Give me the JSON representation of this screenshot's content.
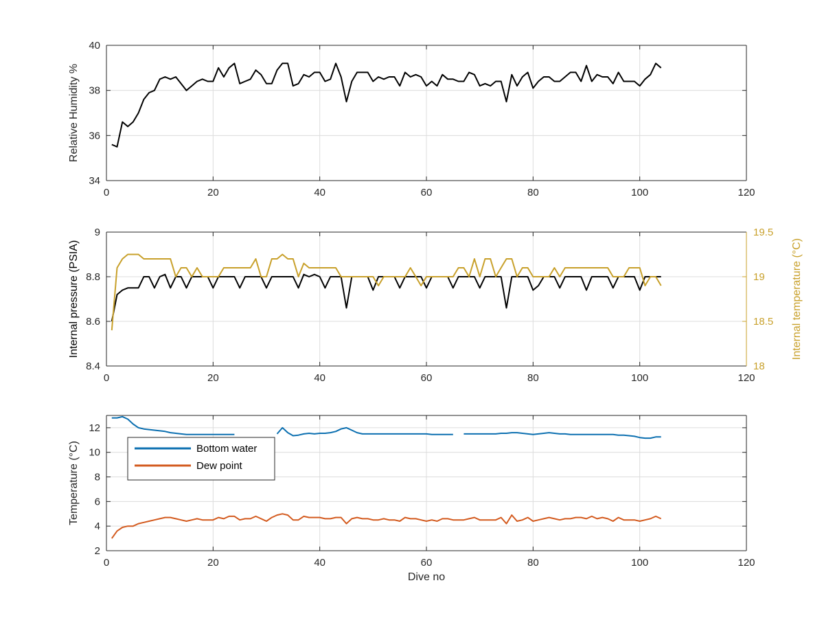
{
  "chart_data": [
    {
      "type": "line",
      "xlabel": "",
      "ylabel": "Relative Humidity %",
      "xlim": [
        0,
        120
      ],
      "ylim": [
        34,
        40
      ],
      "xticks": [
        "0",
        "20",
        "40",
        "60",
        "80",
        "100",
        "120"
      ],
      "yticks": [
        "34",
        "36",
        "38",
        "40"
      ],
      "grid": true,
      "series": [
        {
          "color": "#000000",
          "axis": "left",
          "x": [
            1,
            2,
            3,
            4,
            5,
            6,
            7,
            8,
            9,
            10,
            11,
            12,
            13,
            14,
            15,
            16,
            17,
            18,
            19,
            20,
            21,
            22,
            23,
            24,
            25,
            26,
            27,
            28,
            29,
            30,
            31,
            32,
            33,
            34,
            35,
            36,
            37,
            38,
            39,
            40,
            41,
            42,
            43,
            44,
            45,
            46,
            47,
            48,
            49,
            50,
            51,
            52,
            53,
            54,
            55,
            56,
            57,
            58,
            59,
            60,
            61,
            62,
            63,
            64,
            65,
            66,
            67,
            68,
            69,
            70,
            71,
            72,
            73,
            74,
            75,
            76,
            77,
            78,
            79,
            80,
            81,
            82,
            83,
            84,
            85,
            86,
            87,
            88,
            89,
            90,
            91,
            92,
            93,
            94,
            95,
            96,
            97,
            98,
            99,
            100,
            101,
            102,
            103,
            104
          ],
          "y": [
            35.6,
            35.5,
            36.6,
            36.4,
            36.6,
            37.0,
            37.6,
            37.9,
            38.0,
            38.5,
            38.6,
            38.5,
            38.6,
            38.3,
            38.0,
            38.2,
            38.4,
            38.5,
            38.4,
            38.4,
            39.0,
            38.6,
            39.0,
            39.2,
            38.3,
            38.4,
            38.5,
            38.9,
            38.7,
            38.3,
            38.3,
            38.9,
            39.2,
            39.2,
            38.2,
            38.3,
            38.7,
            38.6,
            38.8,
            38.8,
            38.4,
            38.5,
            39.2,
            38.6,
            37.5,
            38.4,
            38.8,
            38.8,
            38.8,
            38.4,
            38.6,
            38.5,
            38.6,
            38.6,
            38.2,
            38.8,
            38.6,
            38.7,
            38.6,
            38.2,
            38.4,
            38.2,
            38.7,
            38.5,
            38.5,
            38.4,
            38.4,
            38.8,
            38.7,
            38.2,
            38.3,
            38.2,
            38.4,
            38.4,
            37.5,
            38.7,
            38.2,
            38.6,
            38.8,
            38.1,
            38.4,
            38.6,
            38.6,
            38.4,
            38.4,
            38.6,
            38.8,
            38.8,
            38.4,
            39.1,
            38.4,
            38.7,
            38.6,
            38.6,
            38.3,
            38.8,
            38.4,
            38.4,
            38.4,
            38.2,
            38.5,
            38.7,
            39.2,
            39.0
          ]
        }
      ]
    },
    {
      "type": "line",
      "xlabel": "",
      "ylabel": "Internal pressure (PSIA)",
      "ylabel_right": "Internal temperature (°C)",
      "xlim": [
        0,
        120
      ],
      "ylim": [
        8.4,
        9
      ],
      "ylim_right": [
        18,
        19.5
      ],
      "xticks": [
        "0",
        "20",
        "40",
        "60",
        "80",
        "100",
        "120"
      ],
      "yticks": [
        "8.4",
        "8.6",
        "8.8",
        "9"
      ],
      "yticks_right": [
        "18",
        "18.5",
        "19",
        "19.5"
      ],
      "grid": true,
      "series": [
        {
          "color": "#000000",
          "axis": "left",
          "x": [
            1,
            2,
            3,
            4,
            5,
            6,
            7,
            8,
            9,
            10,
            11,
            12,
            13,
            14,
            15,
            16,
            17,
            18,
            19,
            20,
            21,
            22,
            23,
            24,
            25,
            26,
            27,
            28,
            29,
            30,
            31,
            32,
            33,
            34,
            35,
            36,
            37,
            38,
            39,
            40,
            41,
            42,
            43,
            44,
            45,
            46,
            47,
            48,
            49,
            50,
            51,
            52,
            53,
            54,
            55,
            56,
            57,
            58,
            59,
            60,
            61,
            62,
            63,
            64,
            65,
            66,
            67,
            68,
            69,
            70,
            71,
            72,
            73,
            74,
            75,
            76,
            77,
            78,
            79,
            80,
            81,
            82,
            83,
            84,
            85,
            86,
            87,
            88,
            89,
            90,
            91,
            92,
            93,
            94,
            95,
            96,
            97,
            98,
            99,
            100,
            101,
            102,
            103,
            104
          ],
          "y": [
            8.6,
            8.72,
            8.74,
            8.75,
            8.75,
            8.75,
            8.8,
            8.8,
            8.75,
            8.8,
            8.81,
            8.75,
            8.8,
            8.8,
            8.75,
            8.8,
            8.8,
            8.8,
            8.8,
            8.75,
            8.8,
            8.8,
            8.8,
            8.8,
            8.75,
            8.8,
            8.8,
            8.8,
            8.8,
            8.75,
            8.8,
            8.8,
            8.8,
            8.8,
            8.8,
            8.75,
            8.81,
            8.8,
            8.81,
            8.8,
            8.75,
            8.8,
            8.8,
            8.8,
            8.66,
            8.8,
            8.8,
            8.8,
            8.8,
            8.74,
            8.8,
            8.8,
            8.8,
            8.8,
            8.75,
            8.8,
            8.8,
            8.8,
            8.8,
            8.75,
            8.8,
            8.8,
            8.8,
            8.8,
            8.75,
            8.8,
            8.8,
            8.8,
            8.8,
            8.75,
            8.8,
            8.8,
            8.8,
            8.8,
            8.66,
            8.8,
            8.8,
            8.8,
            8.8,
            8.74,
            8.76,
            8.8,
            8.8,
            8.8,
            8.75,
            8.8,
            8.8,
            8.8,
            8.8,
            8.74,
            8.8,
            8.8,
            8.8,
            8.8,
            8.75,
            8.8,
            8.8,
            8.8,
            8.8,
            8.74,
            8.8,
            8.8,
            8.8,
            8.8
          ]
        },
        {
          "color": "#c8a02a",
          "axis": "right",
          "x": [
            1,
            2,
            3,
            4,
            5,
            6,
            7,
            8,
            9,
            10,
            11,
            12,
            13,
            14,
            15,
            16,
            17,
            18,
            19,
            20,
            21,
            22,
            23,
            24,
            25,
            26,
            27,
            28,
            29,
            30,
            31,
            32,
            33,
            34,
            35,
            36,
            37,
            38,
            39,
            40,
            41,
            42,
            43,
            44,
            45,
            46,
            47,
            48,
            49,
            50,
            51,
            52,
            53,
            54,
            55,
            56,
            57,
            58,
            59,
            60,
            61,
            62,
            63,
            64,
            65,
            66,
            67,
            68,
            69,
            70,
            71,
            72,
            73,
            74,
            75,
            76,
            77,
            78,
            79,
            80,
            81,
            82,
            83,
            84,
            85,
            86,
            87,
            88,
            89,
            90,
            91,
            92,
            93,
            94,
            95,
            96,
            97,
            98,
            99,
            100,
            101,
            102,
            103,
            104
          ],
          "y": [
            18.4,
            19.1,
            19.2,
            19.25,
            19.25,
            19.25,
            19.2,
            19.2,
            19.2,
            19.2,
            19.2,
            19.2,
            19.0,
            19.1,
            19.1,
            19.0,
            19.1,
            19.0,
            19.0,
            19.0,
            19.0,
            19.1,
            19.1,
            19.1,
            19.1,
            19.1,
            19.1,
            19.2,
            19.0,
            19.0,
            19.2,
            19.2,
            19.25,
            19.2,
            19.2,
            19.0,
            19.15,
            19.1,
            19.1,
            19.1,
            19.1,
            19.1,
            19.1,
            19.0,
            19.0,
            19.0,
            19.0,
            19.0,
            19.0,
            19.0,
            18.9,
            19.0,
            19.0,
            19.0,
            19.0,
            19.0,
            19.1,
            19.0,
            18.9,
            19.0,
            19.0,
            19.0,
            19.0,
            19.0,
            19.0,
            19.1,
            19.1,
            19.0,
            19.2,
            19.0,
            19.2,
            19.2,
            19.0,
            19.1,
            19.2,
            19.2,
            19.0,
            19.1,
            19.1,
            19.0,
            19.0,
            19.0,
            19.0,
            19.1,
            19.0,
            19.1,
            19.1,
            19.1,
            19.1,
            19.1,
            19.1,
            19.1,
            19.1,
            19.1,
            19.0,
            19.0,
            19.0,
            19.1,
            19.1,
            19.1,
            18.9,
            19.0,
            19.0,
            18.9
          ]
        }
      ]
    },
    {
      "type": "line",
      "xlabel": "Dive no",
      "ylabel": "Temperature (°C)",
      "xlim": [
        0,
        120
      ],
      "ylim": [
        2,
        13
      ],
      "xticks": [
        "0",
        "20",
        "40",
        "60",
        "80",
        "100",
        "120"
      ],
      "yticks": [
        "2",
        "4",
        "6",
        "8",
        "10",
        "12"
      ],
      "grid": true,
      "legend": "top-left",
      "series": [
        {
          "name": "Bottom water",
          "color": "#0b6fb0",
          "axis": "left",
          "x": [
            1,
            2,
            3,
            4,
            5,
            6,
            7,
            8,
            9,
            10,
            11,
            12,
            13,
            14,
            15,
            16,
            17,
            18,
            19,
            20,
            21,
            22,
            23,
            24,
            25,
            26,
            27,
            28,
            29,
            30,
            31,
            32,
            33,
            34,
            35,
            36,
            37,
            38,
            39,
            40,
            41,
            42,
            43,
            44,
            45,
            46,
            47,
            48,
            49,
            50,
            51,
            52,
            53,
            54,
            55,
            56,
            57,
            58,
            59,
            60,
            61,
            62,
            63,
            64,
            65,
            66,
            67,
            68,
            69,
            70,
            71,
            72,
            73,
            74,
            75,
            76,
            77,
            78,
            79,
            80,
            81,
            82,
            83,
            84,
            85,
            86,
            87,
            88,
            89,
            90,
            91,
            92,
            93,
            94,
            95,
            96,
            97,
            98,
            99,
            100,
            101,
            102,
            103,
            104
          ],
          "y": [
            12.8,
            12.8,
            12.9,
            12.7,
            12.3,
            12.0,
            11.9,
            11.85,
            11.8,
            11.75,
            11.7,
            11.6,
            11.55,
            11.5,
            11.45,
            11.45,
            11.45,
            11.45,
            11.45,
            11.45,
            11.45,
            11.45,
            11.45,
            11.45,
            null,
            null,
            null,
            null,
            null,
            null,
            null,
            11.5,
            12.0,
            11.6,
            11.35,
            11.4,
            11.5,
            11.55,
            11.5,
            11.55,
            11.55,
            11.6,
            11.7,
            11.9,
            12.0,
            11.8,
            11.6,
            11.5,
            11.5,
            11.5,
            11.5,
            11.5,
            11.5,
            11.5,
            11.5,
            11.5,
            11.5,
            11.5,
            11.5,
            11.5,
            11.45,
            11.45,
            11.45,
            11.45,
            11.45,
            null,
            11.5,
            11.5,
            11.5,
            11.5,
            11.5,
            11.5,
            11.5,
            11.55,
            11.55,
            11.6,
            11.6,
            11.55,
            11.5,
            11.45,
            11.5,
            11.55,
            11.6,
            11.55,
            11.5,
            11.5,
            11.45,
            11.45,
            11.45,
            11.45,
            11.45,
            11.45,
            11.45,
            11.45,
            11.45,
            11.4,
            11.4,
            11.35,
            11.3,
            11.2,
            11.15,
            11.15,
            11.25,
            11.25
          ]
        },
        {
          "name": "Dew point",
          "color": "#d35a1e",
          "axis": "left",
          "x": [
            1,
            2,
            3,
            4,
            5,
            6,
            7,
            8,
            9,
            10,
            11,
            12,
            13,
            14,
            15,
            16,
            17,
            18,
            19,
            20,
            21,
            22,
            23,
            24,
            25,
            26,
            27,
            28,
            29,
            30,
            31,
            32,
            33,
            34,
            35,
            36,
            37,
            38,
            39,
            40,
            41,
            42,
            43,
            44,
            45,
            46,
            47,
            48,
            49,
            50,
            51,
            52,
            53,
            54,
            55,
            56,
            57,
            58,
            59,
            60,
            61,
            62,
            63,
            64,
            65,
            66,
            67,
            68,
            69,
            70,
            71,
            72,
            73,
            74,
            75,
            76,
            77,
            78,
            79,
            80,
            81,
            82,
            83,
            84,
            85,
            86,
            87,
            88,
            89,
            90,
            91,
            92,
            93,
            94,
            95,
            96,
            97,
            98,
            99,
            100,
            101,
            102,
            103,
            104
          ],
          "y": [
            3.0,
            3.6,
            3.9,
            4.0,
            4.0,
            4.2,
            4.3,
            4.4,
            4.5,
            4.6,
            4.7,
            4.7,
            4.6,
            4.5,
            4.4,
            4.5,
            4.6,
            4.5,
            4.5,
            4.5,
            4.7,
            4.6,
            4.8,
            4.8,
            4.5,
            4.6,
            4.6,
            4.8,
            4.6,
            4.4,
            4.7,
            4.9,
            5.0,
            4.9,
            4.5,
            4.5,
            4.8,
            4.7,
            4.7,
            4.7,
            4.6,
            4.6,
            4.7,
            4.7,
            4.2,
            4.6,
            4.7,
            4.6,
            4.6,
            4.5,
            4.5,
            4.6,
            4.5,
            4.5,
            4.4,
            4.7,
            4.6,
            4.6,
            4.5,
            4.4,
            4.5,
            4.4,
            4.6,
            4.6,
            4.5,
            4.5,
            4.5,
            4.6,
            4.7,
            4.5,
            4.5,
            4.5,
            4.5,
            4.7,
            4.2,
            4.9,
            4.4,
            4.5,
            4.7,
            4.4,
            4.5,
            4.6,
            4.7,
            4.6,
            4.5,
            4.6,
            4.6,
            4.7,
            4.7,
            4.6,
            4.8,
            4.6,
            4.7,
            4.6,
            4.4,
            4.7,
            4.5,
            4.5,
            4.5,
            4.4,
            4.5,
            4.6,
            4.8,
            4.6
          ]
        }
      ]
    }
  ]
}
